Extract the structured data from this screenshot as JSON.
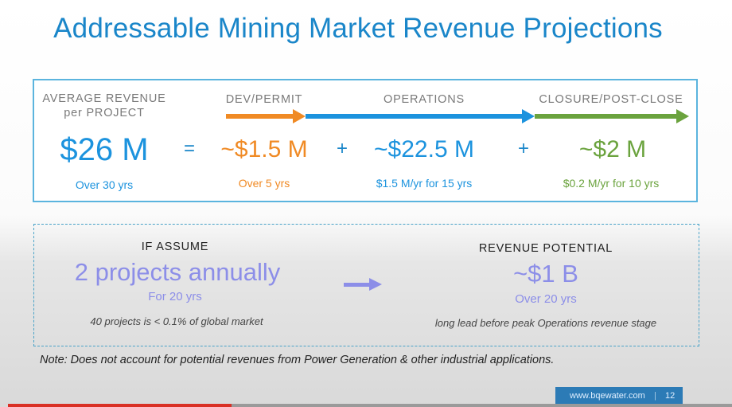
{
  "slide": {
    "title": "Addressable Mining Market Revenue Projections",
    "formula": {
      "avg_label_1": "AVERAGE REVENUE",
      "avg_label_2": "per PROJECT",
      "avg_value": "$26 M",
      "avg_sub": "Over 30 yrs",
      "equals": "=",
      "plus": "+",
      "phases": [
        {
          "label": "DEV/PERMIT",
          "value": "~$1.5 M",
          "sub": "Over 5 yrs",
          "color": "#f08a24"
        },
        {
          "label": "OPERATIONS",
          "value": "~$22.5 M",
          "sub": "$1.5 M/yr for 15 yrs",
          "color": "#1c93de"
        },
        {
          "label": "CLOSURE/POST-CLOSE",
          "value": "~$2 M",
          "sub": "$0.2 M/yr for 10 yrs",
          "color": "#6ba33e"
        }
      ]
    },
    "scenario": {
      "assume_label": "IF ASSUME",
      "assume_value": "2 projects annually",
      "assume_sub": "For 20 yrs",
      "assume_note": "40 projects is < 0.1% of global market",
      "potential_label": "REVENUE POTENTIAL",
      "potential_value": "~$1 B",
      "potential_sub": "Over 20 yrs",
      "potential_note": "long lead before peak Operations revenue stage",
      "accent": "#8c8ee8"
    },
    "note": "Note: Does not account for potential revenues from Power Generation & other industrial applications.",
    "footer": {
      "url": "www.bqewater.com",
      "separator": "|",
      "page": "12"
    }
  }
}
